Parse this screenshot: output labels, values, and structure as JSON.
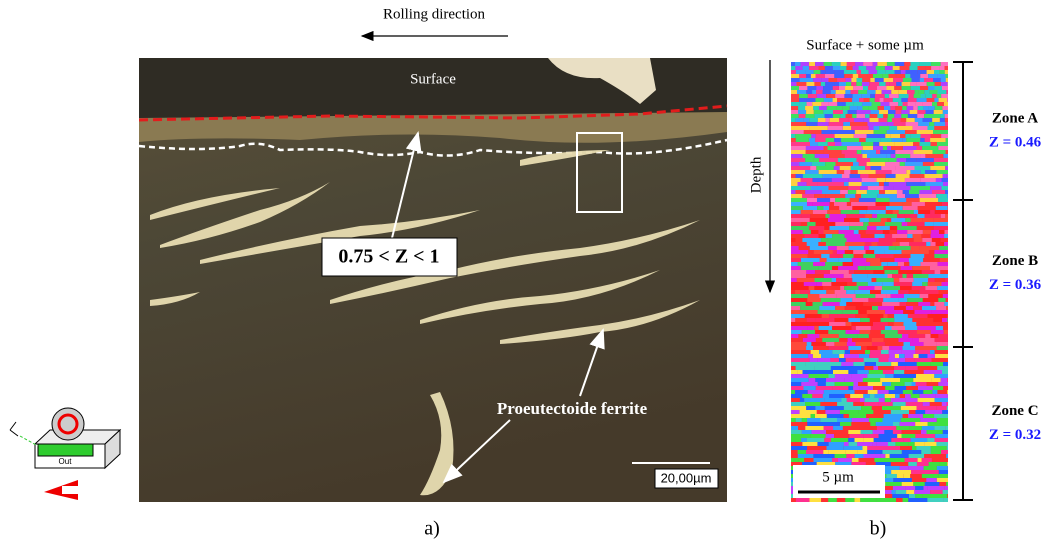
{
  "panel_a": {
    "rolling_direction": "Rolling direction",
    "surface_label": "Surface",
    "z_range_label": "0.75 < Z < 1",
    "ferrite_label": "Proeutectoide ferrite",
    "scale_bar": "20,00µm",
    "caption": "a)",
    "icon_label": "Out"
  },
  "panel_b": {
    "header": "Surface + some µm",
    "depth_label": "Depth",
    "scale_bar": "5 µm",
    "caption": "b)",
    "zones": [
      {
        "name": "Zone A",
        "z": "Z = 0.46"
      },
      {
        "name": "Zone B",
        "z": "Z = 0.36"
      },
      {
        "name": "Zone C",
        "z": "Z = 0.32"
      }
    ]
  }
}
